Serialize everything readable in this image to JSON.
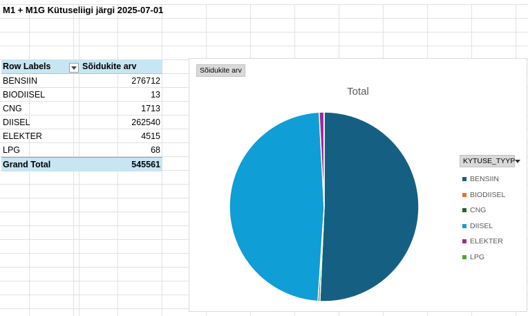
{
  "sheet": {
    "title": "M1 + M1G Kütuseliigi järgi 2025-07-01"
  },
  "pivot": {
    "header_labels": "Row Labels",
    "header_values": "Sõidukite arv",
    "rows": [
      {
        "label": "BENSIIN",
        "value": "276712"
      },
      {
        "label": "BIODIISEL",
        "value": "13"
      },
      {
        "label": "CNG",
        "value": "1713"
      },
      {
        "label": "DIISEL",
        "value": "262540"
      },
      {
        "label": "ELEKTER",
        "value": "4515"
      },
      {
        "label": "LPG",
        "value": "68"
      }
    ],
    "total_label": "Grand Total",
    "total_value": "545561"
  },
  "chart": {
    "field_button": "Sõidukite arv",
    "legend_button": "KYTUSE_TYYP",
    "colors": {
      "BENSIIN": "#156082",
      "BIODIISEL": "#e97132",
      "CNG": "#196b24",
      "DIISEL": "#0f9ed5",
      "ELEKTER": "#a02b93",
      "LPG": "#4ea72e"
    }
  },
  "chart_data": {
    "type": "pie",
    "title": "Total",
    "categories": [
      "BENSIIN",
      "BIODIISEL",
      "CNG",
      "DIISEL",
      "ELEKTER",
      "LPG"
    ],
    "values": [
      276712,
      13,
      1713,
      262540,
      4515,
      68
    ],
    "legend": "right"
  }
}
